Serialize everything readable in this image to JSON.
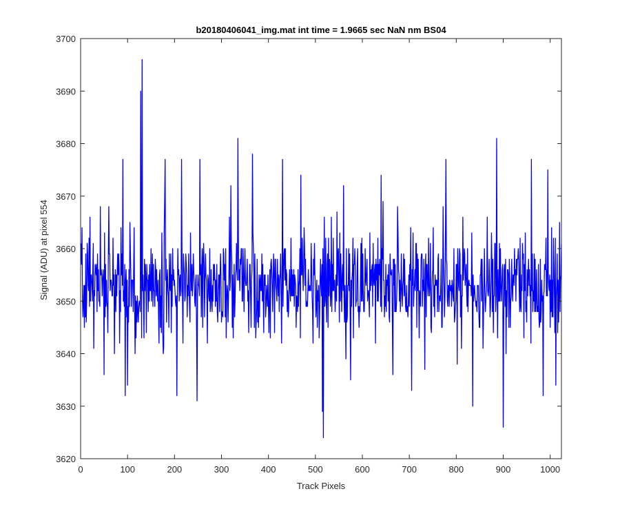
{
  "chart_data": {
    "type": "line",
    "title": "b20180406041_img.mat int time = 1.9665 sec  NaN nm BS04",
    "xlabel": "Track Pixels",
    "ylabel": "Signal (ADU) at pixel 554",
    "xlim": [
      0,
      1024
    ],
    "ylim": [
      3620,
      3700
    ],
    "xticks": [
      0,
      100,
      200,
      300,
      400,
      500,
      600,
      700,
      800,
      900,
      1000
    ],
    "yticks": [
      3620,
      3630,
      3640,
      3650,
      3660,
      3670,
      3680,
      3690,
      3700
    ],
    "grid": false,
    "legend": "none",
    "series_color": "#0000ff",
    "series": [
      {
        "x_start": 1,
        "x_step": 1,
        "count": 1024,
        "mean": 3653,
        "noise_sd": 5,
        "notable_points": [
          {
            "x": 3,
            "y": 3664
          },
          {
            "x": 10,
            "y": 3647
          },
          {
            "x": 20,
            "y": 3666
          },
          {
            "x": 28,
            "y": 3641
          },
          {
            "x": 50,
            "y": 3636
          },
          {
            "x": 60,
            "y": 3668
          },
          {
            "x": 72,
            "y": 3640
          },
          {
            "x": 90,
            "y": 3677
          },
          {
            "x": 95,
            "y": 3632
          },
          {
            "x": 100,
            "y": 3634
          },
          {
            "x": 128,
            "y": 3690
          },
          {
            "x": 131,
            "y": 3696
          },
          {
            "x": 135,
            "y": 3643
          },
          {
            "x": 180,
            "y": 3677
          },
          {
            "x": 205,
            "y": 3632
          },
          {
            "x": 215,
            "y": 3677
          },
          {
            "x": 248,
            "y": 3631
          },
          {
            "x": 254,
            "y": 3677
          },
          {
            "x": 320,
            "y": 3672
          },
          {
            "x": 335,
            "y": 3681
          },
          {
            "x": 366,
            "y": 3678
          },
          {
            "x": 430,
            "y": 3677
          },
          {
            "x": 469,
            "y": 3674
          },
          {
            "x": 515,
            "y": 3629
          },
          {
            "x": 517,
            "y": 3624
          },
          {
            "x": 560,
            "y": 3672
          },
          {
            "x": 575,
            "y": 3635
          },
          {
            "x": 640,
            "y": 3674
          },
          {
            "x": 665,
            "y": 3636
          },
          {
            "x": 705,
            "y": 3633
          },
          {
            "x": 778,
            "y": 3677
          },
          {
            "x": 835,
            "y": 3630
          },
          {
            "x": 886,
            "y": 3681
          },
          {
            "x": 900,
            "y": 3626
          },
          {
            "x": 960,
            "y": 3677
          },
          {
            "x": 978,
            "y": 3646
          },
          {
            "x": 985,
            "y": 3632
          },
          {
            "x": 995,
            "y": 3675
          },
          {
            "x": 1012,
            "y": 3634
          },
          {
            "x": 1020,
            "y": 3665
          }
        ]
      }
    ]
  }
}
